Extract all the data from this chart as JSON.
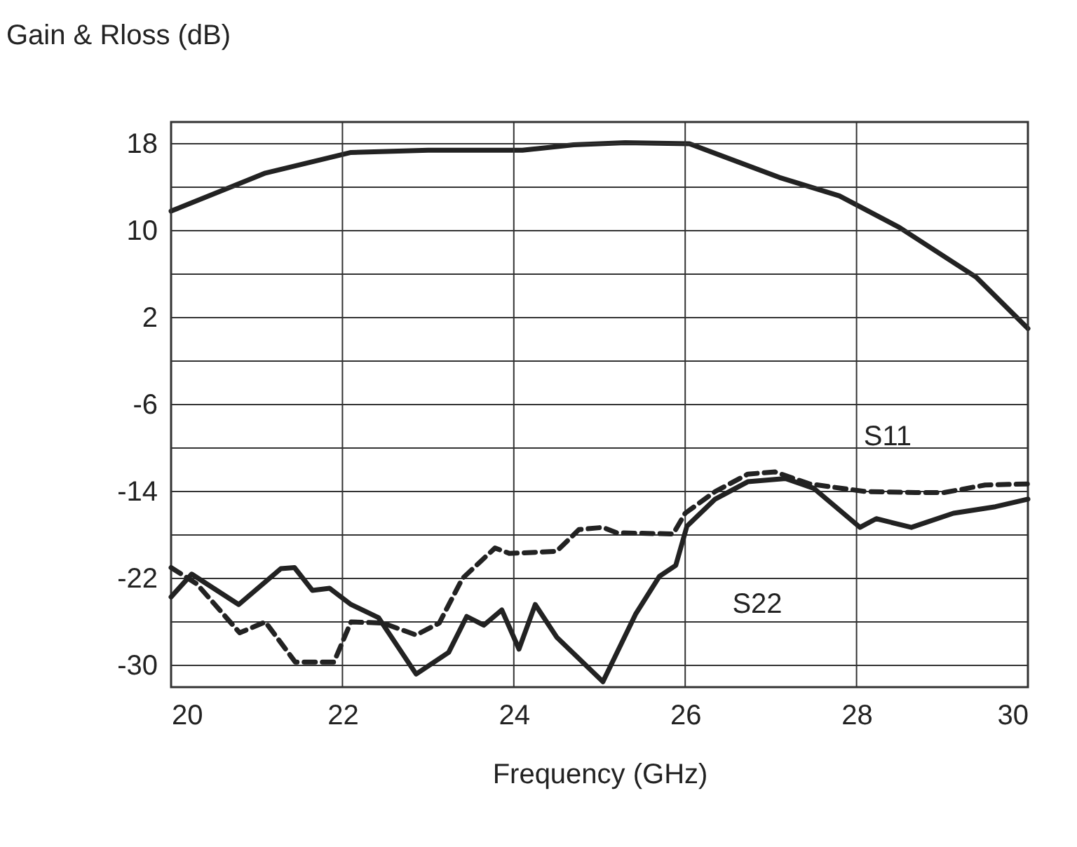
{
  "chart_data": {
    "type": "line",
    "xlabel": "Frequency (GHz)",
    "ylabel": "Gain & Rloss (dB)",
    "xlim": [
      20,
      30
    ],
    "xticks": [
      20,
      22,
      24,
      26,
      28,
      30
    ],
    "ylim": [
      -32,
      20
    ],
    "yticks": [
      -30,
      {
        "value": -26,
        "label": null
      },
      -22,
      {
        "value": -18,
        "label": null
      },
      -14,
      {
        "value": -10,
        "label": null
      },
      -6,
      {
        "value": -2,
        "label": null
      },
      2,
      {
        "value": 6,
        "label": null
      },
      10,
      {
        "value": 14,
        "label": null
      },
      18
    ],
    "grid": true,
    "legend": false,
    "marker": "none",
    "series": [
      {
        "color": "#222222",
        "line_style": "solid",
        "x": [
          20,
          21.1,
          22.1,
          23,
          24.1,
          24.7,
          25.3,
          26.05,
          27.1,
          27.8,
          28.5,
          29.4,
          30
        ],
        "values": [
          11.8,
          15.3,
          17.2,
          17.4,
          17.4,
          17.9,
          18.1,
          18,
          14.9,
          13.2,
          10.3,
          5.7,
          1
        ]
      },
      {
        "name": "S11",
        "color": "#222222",
        "line_style": "dashed",
        "x": [
          20,
          20.3,
          20.8,
          21.1,
          21.45,
          21.9,
          22.1,
          22.47,
          22.86,
          23.13,
          23.4,
          23.78,
          23.95,
          24.5,
          24.76,
          25.04,
          25.2,
          25.86,
          26,
          26.35,
          26.73,
          27.05,
          27.45,
          28.1,
          28.69,
          29.02,
          29.5,
          30
        ],
        "values": [
          -21,
          -22.5,
          -27,
          -26,
          -29.7,
          -29.7,
          -26,
          -26.1,
          -27.2,
          -26.1,
          -22,
          -19.2,
          -19.7,
          -19.5,
          -17.5,
          -17.3,
          -17.8,
          -17.9,
          -16,
          -14,
          -12.4,
          -12.2,
          -13.3,
          -14,
          -14.1,
          -14.1,
          -13.4,
          -13.3
        ]
      },
      {
        "name": "S22",
        "color": "#222222",
        "line_style": "solid",
        "x": [
          20,
          20.24,
          20.79,
          21.28,
          21.44,
          21.65,
          21.85,
          22.1,
          22.42,
          22.86,
          23.24,
          23.45,
          23.65,
          23.86,
          24.06,
          24.25,
          24.5,
          25.04,
          25.42,
          25.7,
          25.89,
          26.02,
          26.35,
          26.73,
          27.17,
          27.5,
          28.04,
          28.23,
          28.64,
          29.13,
          29.62,
          30
        ],
        "values": [
          -23.7,
          -21.6,
          -24.4,
          -21.1,
          -21,
          -23.1,
          -22.9,
          -24.4,
          -25.6,
          -30.8,
          -28.8,
          -25.5,
          -26.3,
          -24.9,
          -28.5,
          -24.4,
          -27.4,
          -31.5,
          -25.3,
          -21.8,
          -20.8,
          -17.2,
          -14.7,
          -13.1,
          -12.8,
          -13.7,
          -17.3,
          -16.5,
          -17.3,
          -16,
          -15.4,
          -14.7
        ]
      }
    ]
  }
}
